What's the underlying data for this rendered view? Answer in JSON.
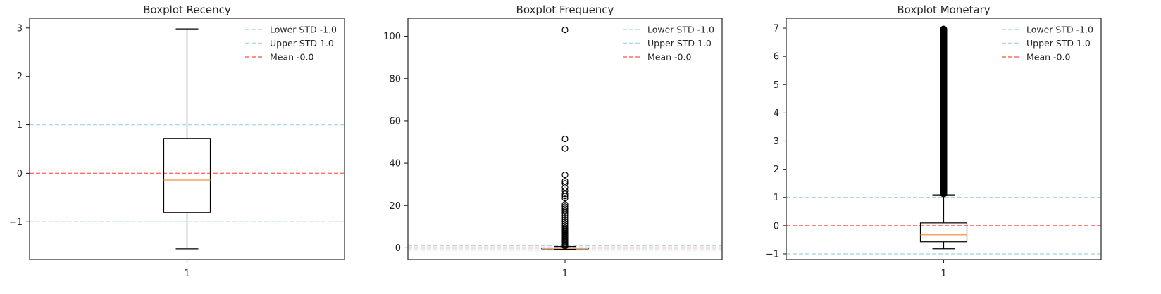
{
  "chart_data": [
    {
      "type": "box",
      "title": "Boxplot Recency",
      "x_tick_labels": [
        "1"
      ],
      "y_ticks": [
        -1,
        0,
        1,
        2,
        3
      ],
      "y_tick_labels": [
        "−1",
        "0",
        "1",
        "2",
        "3"
      ],
      "ylim": [
        -1.78,
        3.2
      ],
      "box": {
        "whisker_low": -1.56,
        "q1": -0.81,
        "median": -0.14,
        "q3": 0.72,
        "whisker_high": 2.98
      },
      "outliers": [],
      "reference_lines": [
        {
          "label": "Lower STD -1.0",
          "value": -1.0,
          "color": "#add8e6"
        },
        {
          "label": "Upper STD 1.0",
          "value": 1.0,
          "color": "#add8e6"
        },
        {
          "label": "Mean -0.0",
          "value": 0.0,
          "color": "#ff6f61"
        }
      ],
      "legend_position": "top-right",
      "grid": false
    },
    {
      "type": "box",
      "title": "Boxplot Frequency",
      "x_tick_labels": [
        "1"
      ],
      "y_ticks": [
        0,
        20,
        40,
        60,
        80,
        100
      ],
      "y_tick_labels": [
        "0",
        "20",
        "40",
        "60",
        "80",
        "100"
      ],
      "ylim": [
        -5.5,
        108.5
      ],
      "box": {
        "whisker_low": -0.7,
        "q1": -0.45,
        "median": -0.25,
        "q3": -0.05,
        "whisker_high": 0.6
      },
      "outliers": [
        103,
        51.5,
        47,
        34.5,
        31.5,
        30.5,
        28.5,
        27,
        25.5,
        24.5,
        23.5,
        20.5,
        19.5,
        18.5,
        17.5,
        16.5,
        15.5,
        14.5,
        13.5,
        12.5,
        11.5,
        10.5,
        9.5,
        9,
        8.5,
        8,
        7.5,
        7,
        6.5,
        6,
        5.5,
        5,
        4.5,
        4,
        3.5,
        3,
        2.5,
        2,
        1.5,
        1.2,
        1,
        0.8
      ],
      "reference_lines": [
        {
          "label": "Lower STD -1.0",
          "value": -1.0,
          "color": "#add8e6"
        },
        {
          "label": "Upper STD 1.0",
          "value": 1.0,
          "color": "#add8e6"
        },
        {
          "label": "Mean -0.0",
          "value": 0.0,
          "color": "#ff6f61"
        }
      ],
      "legend_position": "top-right",
      "grid": false
    },
    {
      "type": "box",
      "title": "Boxplot Monetary",
      "x_tick_labels": [
        "1"
      ],
      "y_ticks": [
        -1,
        0,
        1,
        2,
        3,
        4,
        5,
        6,
        7
      ],
      "y_tick_labels": [
        "−1",
        "0",
        "1",
        "2",
        "3",
        "4",
        "5",
        "6",
        "7"
      ],
      "ylim": [
        -1.2,
        7.35
      ],
      "box": {
        "whisker_low": -0.82,
        "q1": -0.57,
        "median": -0.32,
        "q3": 0.1,
        "whisker_high": 1.09
      },
      "outlier_range": [
        1.09,
        7.0
      ],
      "reference_lines": [
        {
          "label": "Lower STD -1.0",
          "value": -1.0,
          "color": "#add8e6"
        },
        {
          "label": "Upper STD 1.0",
          "value": 1.0,
          "color": "#add8e6"
        },
        {
          "label": "Mean -0.0",
          "value": 0.0,
          "color": "#ff6f61"
        }
      ],
      "legend_position": "top-right",
      "grid": false
    }
  ],
  "colors": {
    "box": "#000000",
    "median": "#f4a460",
    "std_lines": "#add8e6",
    "mean_line": "#ff6f61"
  }
}
